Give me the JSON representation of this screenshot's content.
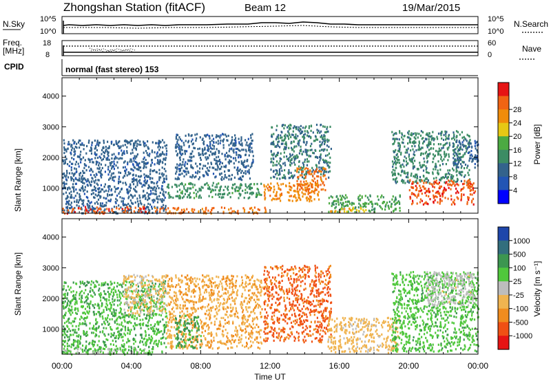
{
  "header": {
    "station": "Zhongshan Station (fitACF)",
    "beam": "Beam 12",
    "date": "19/Mar/2015"
  },
  "noise_panel": {
    "left_label": "N.Sky",
    "right_label": "N.Search",
    "left_ticks": [
      "10^5",
      "10^0"
    ],
    "right_ticks": [
      "10^5",
      "10^0"
    ]
  },
  "freq_panel": {
    "left_label_1": "Freq.",
    "left_label_2": "[MHz]",
    "left_ticks": [
      "18",
      "8"
    ],
    "right_label": "Nave",
    "right_ticks": [
      "60",
      "0"
    ]
  },
  "cpid": {
    "label": "CPID",
    "value": "normal (fast stereo) 153"
  },
  "x_axis": {
    "label": "Time UT",
    "ticks": [
      "00:00",
      "04:00",
      "08:00",
      "12:00",
      "16:00",
      "20:00",
      "00:00"
    ]
  },
  "colors": {
    "power_scale": [
      "#0000ff",
      "#2255b4",
      "#33638c",
      "#3c8c64",
      "#4caa42",
      "#e6c814",
      "#f08c0a",
      "#f06414",
      "#e61414"
    ],
    "velocity_scale": [
      "#e61414",
      "#f05014",
      "#f08c1e",
      "#f0b450",
      "#bdbdbd",
      "#50c83c",
      "#3c9650",
      "#326e7d",
      "#1e46aa"
    ]
  },
  "chart_data": [
    {
      "type": "heatmap",
      "name": "power",
      "ylabel": "Slant Range [km]",
      "xlabel": "Time UT",
      "yticks": [
        "1000",
        "2000",
        "3000",
        "4000"
      ],
      "ylim": [
        180,
        4600
      ],
      "xlim_hours": [
        0,
        24
      ],
      "colorbar": {
        "label": "Power [dB]",
        "ticks": [
          "4",
          "8",
          "12",
          "16",
          "20",
          "24",
          "28"
        ],
        "range": [
          0,
          30
        ]
      },
      "regions": [
        {
          "t0": 0.0,
          "t1": 6.0,
          "r0": 200,
          "r1": 2600,
          "val": 8
        },
        {
          "t0": 0.0,
          "t1": 5.0,
          "r0": 200,
          "r1": 420,
          "val": 26
        },
        {
          "t0": 5.3,
          "t1": 11.8,
          "r0": 200,
          "r1": 400,
          "val": 24
        },
        {
          "t0": 6.0,
          "t1": 11.5,
          "r0": 700,
          "r1": 1200,
          "val": 12
        },
        {
          "t0": 6.5,
          "t1": 11.0,
          "r0": 1300,
          "r1": 2800,
          "val": 8
        },
        {
          "t0": 11.6,
          "t1": 14.8,
          "r0": 600,
          "r1": 1200,
          "val": 22
        },
        {
          "t0": 12.0,
          "t1": 15.5,
          "r0": 1300,
          "r1": 3100,
          "val": 10
        },
        {
          "t0": 13.5,
          "t1": 15.2,
          "r0": 900,
          "r1": 1700,
          "val": 24
        },
        {
          "t0": 15.3,
          "t1": 19.5,
          "r0": 250,
          "r1": 800,
          "val": 14
        },
        {
          "t0": 15.4,
          "t1": 17.5,
          "r0": 250,
          "r1": 400,
          "val": 20
        },
        {
          "t0": 19.0,
          "t1": 23.5,
          "r0": 1200,
          "r1": 2900,
          "val": 11
        },
        {
          "t0": 20.0,
          "t1": 23.8,
          "r0": 500,
          "r1": 1300,
          "val": 26
        },
        {
          "t0": 22.5,
          "t1": 24.0,
          "r0": 1700,
          "r1": 2600,
          "val": 8
        }
      ]
    },
    {
      "type": "heatmap",
      "name": "velocity",
      "ylabel": "Slant Range [km]",
      "xlabel": "Time UT",
      "yticks": [
        "1000",
        "2000",
        "3000",
        "4000"
      ],
      "ylim": [
        180,
        4600
      ],
      "xlim_hours": [
        0,
        24
      ],
      "colorbar": {
        "label": "Velocity [m s⁻¹]",
        "ticks": [
          "1000",
          "500",
          "100",
          "25",
          "-25",
          "-100",
          "-500",
          "-1000"
        ],
        "range": [
          -1000,
          1000
        ]
      },
      "regions": [
        {
          "t0": 0.0,
          "t1": 6.0,
          "r0": 200,
          "r1": 2600,
          "val": 300
        },
        {
          "t0": 0.0,
          "t1": 5.0,
          "r0": 200,
          "r1": 400,
          "val": 120
        },
        {
          "t0": 3.5,
          "t1": 6.0,
          "r0": 1500,
          "r1": 2800,
          "val": -150
        },
        {
          "t0": 6.0,
          "t1": 11.5,
          "r0": 400,
          "r1": 2800,
          "val": -300
        },
        {
          "t0": 6.5,
          "t1": 8.0,
          "r0": 400,
          "r1": 1500,
          "val": 400
        },
        {
          "t0": 11.6,
          "t1": 15.5,
          "r0": 600,
          "r1": 3100,
          "val": -600
        },
        {
          "t0": 15.3,
          "t1": 19.5,
          "r0": 250,
          "r1": 1400,
          "val": -200
        },
        {
          "t0": 19.0,
          "t1": 24.0,
          "r0": 300,
          "r1": 2900,
          "val": 250
        },
        {
          "t0": 21.0,
          "t1": 23.8,
          "r0": 1800,
          "r1": 2900,
          "val": 0
        }
      ]
    }
  ]
}
